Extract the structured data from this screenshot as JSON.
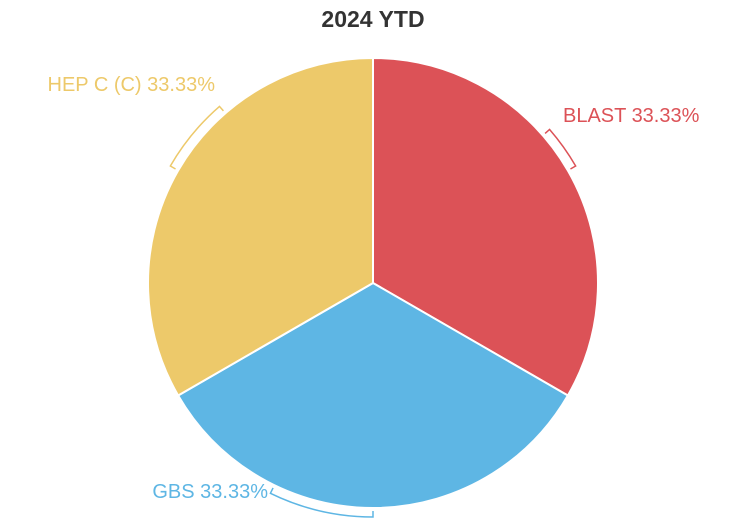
{
  "chart_data": {
    "type": "pie",
    "title": "2024 YTD",
    "categories": [
      "BLAST",
      "GBS",
      "HEP C (C)"
    ],
    "values": [
      33.33,
      33.33,
      33.33
    ],
    "value_labels": [
      "33.33%",
      "33.33%",
      "33.33%"
    ],
    "colors": [
      "#dc5257",
      "#5eb6e4",
      "#edc96a"
    ]
  }
}
